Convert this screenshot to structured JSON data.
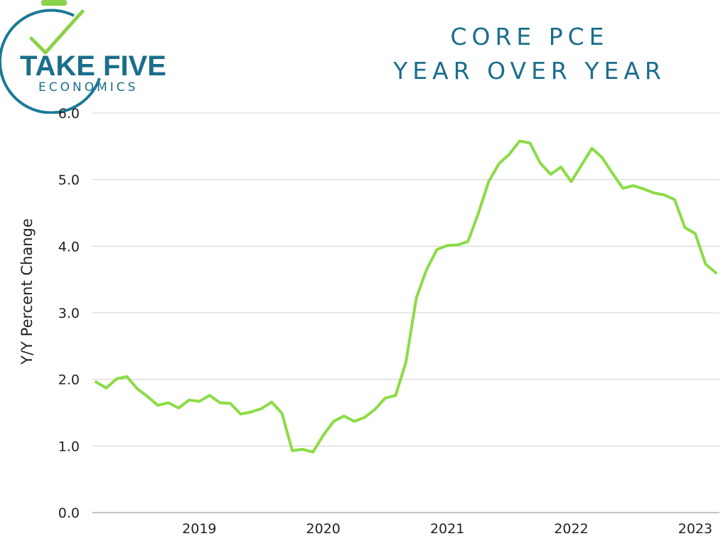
{
  "logo": {
    "line1": "TAKE FIVE",
    "line2": "ECONOMICS",
    "icon": "stopwatch-checkmark-icon",
    "colors": {
      "ring": "#1a7a96",
      "check": "#8bd14a",
      "text": "#1a6e8c"
    }
  },
  "chart_data": {
    "type": "line",
    "title": "CORE PCE",
    "subtitle": "YEAR OVER YEAR",
    "xlabel": "",
    "ylabel": "Y/Y Percent Change",
    "ylim": [
      0,
      6
    ],
    "yticks": [
      "0.0",
      "1.0",
      "2.0",
      "3.0",
      "4.0",
      "5.0",
      "6.0"
    ],
    "xtick_labels": [
      "2019",
      "2020",
      "2021",
      "2022",
      "2023"
    ],
    "grid": "horizontal",
    "line_color": "#8bdc45",
    "series": [
      {
        "x_start": "2018-09",
        "frequency": "monthly",
        "values": [
          1.96,
          1.87,
          2.01,
          2.04,
          1.86,
          1.74,
          1.61,
          1.65,
          1.57,
          1.69,
          1.67,
          1.76,
          1.65,
          1.64,
          1.48,
          1.51,
          1.56,
          1.66,
          1.49,
          0.93,
          0.95,
          0.91,
          1.16,
          1.37,
          1.45,
          1.37,
          1.43,
          1.55,
          1.72,
          1.76,
          2.26,
          3.22,
          3.65,
          3.95,
          4.01,
          4.02,
          4.07,
          4.49,
          4.97,
          5.24,
          5.38,
          5.58,
          5.55,
          5.25,
          5.08,
          5.19,
          4.97,
          5.22,
          5.47,
          5.33,
          5.09,
          4.87,
          4.91,
          4.86,
          4.8,
          4.77,
          4.7,
          4.28,
          4.19,
          3.73,
          3.6
        ]
      }
    ]
  }
}
